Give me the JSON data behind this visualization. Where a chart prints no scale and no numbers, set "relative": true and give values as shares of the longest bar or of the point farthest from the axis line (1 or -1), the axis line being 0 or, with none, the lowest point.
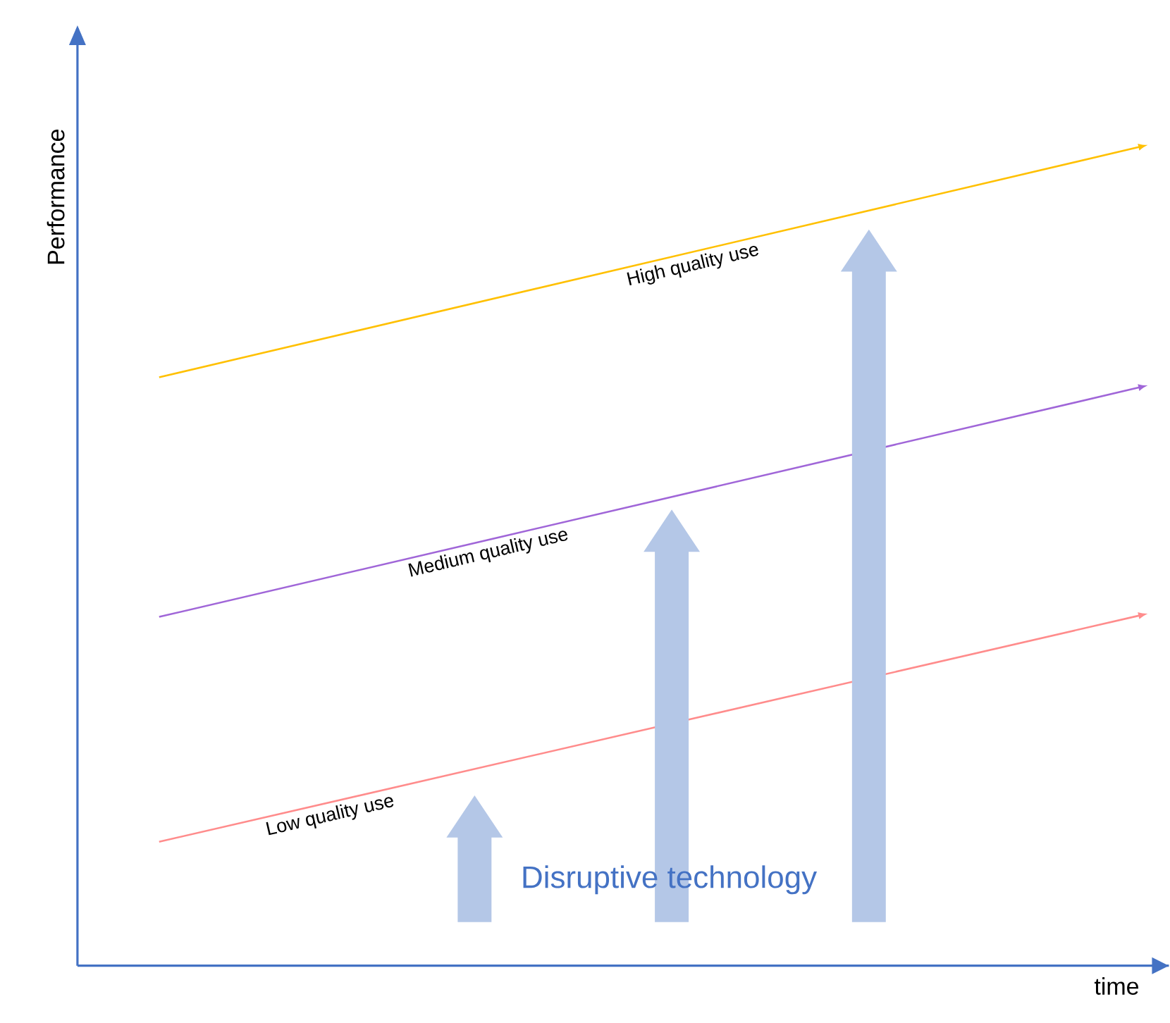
{
  "chart_data": {
    "type": "line",
    "relative": true,
    "xlabel": "time",
    "ylabel": "Performance",
    "categories": [
      null,
      null
    ],
    "series": [
      {
        "name": "High quality use",
        "color": "#ffc000",
        "values": [
          0.717,
          1
        ]
      },
      {
        "name": "Medium quality use",
        "color": "#a066d8",
        "values": [
          0.425,
          0.707
        ]
      },
      {
        "name": "Low quality use",
        "color": "#ff8c8c",
        "values": [
          0.151,
          0.429
        ]
      }
    ],
    "annotations": [
      "Disruptive technology"
    ]
  }
}
